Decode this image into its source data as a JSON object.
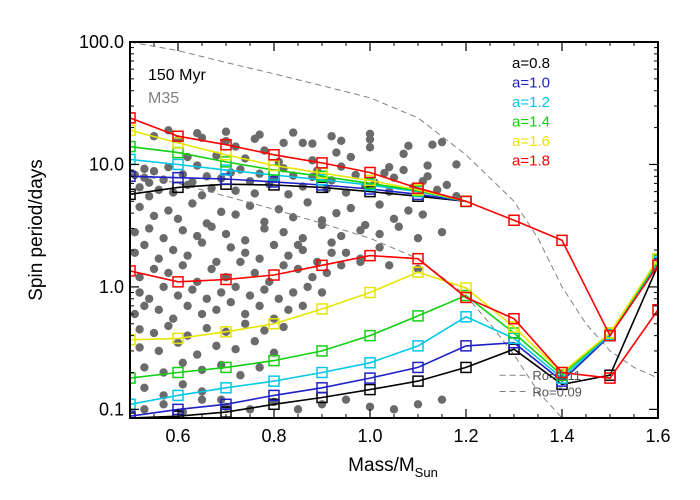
{
  "chart_data": {
    "type": "line",
    "xlabel_main": "Mass/M",
    "xlabel_sub": "Sun",
    "ylabel": "Spin period/days",
    "xlim": [
      0.5,
      1.6
    ],
    "ylim": [
      0.085,
      100
    ],
    "yscale": "log",
    "x_ticks": [
      0.6,
      0.8,
      1.0,
      1.2,
      1.4,
      1.6
    ],
    "x_tick_labels": [
      "0.6",
      "0.8",
      "1.0",
      "1.2",
      "1.4",
      "1.6"
    ],
    "y_ticks": [
      0.1,
      1,
      10,
      100
    ],
    "y_tick_labels": [
      "0.1",
      "1.0",
      "10.0",
      "100.0"
    ],
    "annotations": {
      "age": "150 Myr",
      "cluster": "M35",
      "ro_upper": "Ro=1.11",
      "ro_lower": "Ro=0.09"
    },
    "colors": {
      "scatter": "#6b6b6b",
      "cluster_label": "#808080",
      "ro_line": "#808080",
      "ro_text": "#555555"
    },
    "series": [
      {
        "name": "a=0.8",
        "color": "#000000",
        "upper": {
          "x": [
            0.5,
            0.6,
            0.7,
            0.8,
            0.9,
            1.0,
            1.1,
            1.2
          ],
          "y": [
            5.7,
            6.5,
            6.9,
            6.8,
            6.5,
            6.0,
            5.5,
            5.0
          ]
        },
        "lower": {
          "x": [
            0.5,
            0.6,
            0.7,
            0.8,
            0.9,
            1.0,
            1.1,
            1.2,
            1.3,
            1.4,
            1.5,
            1.6
          ],
          "y": [
            0.085,
            0.088,
            0.095,
            0.11,
            0.125,
            0.145,
            0.17,
            0.22,
            0.31,
            0.16,
            0.19,
            1.5
          ]
        }
      },
      {
        "name": "a=1.0",
        "color": "#2020c8",
        "upper": {
          "x": [
            0.5,
            0.6,
            0.7,
            0.8,
            0.9,
            1.0,
            1.1,
            1.2
          ],
          "y": [
            8.0,
            7.8,
            7.6,
            7.2,
            6.8,
            6.3,
            5.7,
            5.0
          ]
        },
        "lower": {
          "x": [
            0.5,
            0.6,
            0.7,
            0.8,
            0.9,
            1.0,
            1.1,
            1.2,
            1.3,
            1.4,
            1.5,
            1.6
          ],
          "y": [
            0.088,
            0.1,
            0.11,
            0.13,
            0.15,
            0.18,
            0.22,
            0.33,
            0.35,
            0.17,
            0.4,
            1.55
          ]
        }
      },
      {
        "name": "a=1.2",
        "color": "#00c8e6",
        "upper": {
          "x": [
            0.5,
            0.6,
            0.7,
            0.8,
            0.9,
            1.0,
            1.1,
            1.2
          ],
          "y": [
            11.0,
            10.0,
            9.0,
            8.2,
            7.5,
            6.8,
            6.0,
            5.0
          ]
        },
        "lower": {
          "x": [
            0.5,
            0.6,
            0.7,
            0.8,
            0.9,
            1.0,
            1.1,
            1.2,
            1.3,
            1.4,
            1.5,
            1.6
          ],
          "y": [
            0.11,
            0.13,
            0.15,
            0.17,
            0.2,
            0.24,
            0.33,
            0.57,
            0.38,
            0.18,
            0.41,
            1.6
          ]
        }
      },
      {
        "name": "a=1.4",
        "color": "#10d010",
        "upper": {
          "x": [
            0.5,
            0.6,
            0.7,
            0.8,
            0.9,
            1.0,
            1.1,
            1.2
          ],
          "y": [
            14.0,
            12.5,
            10.5,
            9.0,
            8.0,
            7.0,
            6.1,
            5.0
          ]
        },
        "lower": {
          "x": [
            0.5,
            0.6,
            0.7,
            0.8,
            0.9,
            1.0,
            1.1,
            1.2,
            1.3,
            1.4,
            1.5,
            1.6
          ],
          "y": [
            0.18,
            0.2,
            0.22,
            0.25,
            0.3,
            0.4,
            0.58,
            0.85,
            0.42,
            0.19,
            0.42,
            1.65
          ]
        }
      },
      {
        "name": "a=1.6",
        "color": "#e6e600",
        "upper": {
          "x": [
            0.5,
            0.6,
            0.7,
            0.8,
            0.9,
            1.0,
            1.1,
            1.2
          ],
          "y": [
            19.0,
            15.0,
            12.0,
            9.8,
            8.5,
            7.4,
            6.2,
            5.0
          ]
        },
        "lower": {
          "x": [
            0.5,
            0.6,
            0.7,
            0.8,
            0.9,
            1.0,
            1.1,
            1.2,
            1.3,
            1.4,
            1.5,
            1.6
          ],
          "y": [
            0.37,
            0.38,
            0.43,
            0.5,
            0.66,
            0.9,
            1.32,
            0.98,
            0.47,
            0.2,
            0.42,
            1.7
          ]
        }
      },
      {
        "name": "a=1.8",
        "color": "#ff0000",
        "upper": {
          "x": [
            0.5,
            0.6,
            0.7,
            0.8,
            0.9,
            1.0,
            1.1,
            1.2,
            1.3,
            1.4,
            1.5,
            1.6
          ],
          "y": [
            24.0,
            17.0,
            14.5,
            12.0,
            10.3,
            8.6,
            6.4,
            5.0,
            3.5,
            2.4,
            0.4,
            1.5
          ]
        },
        "lower": {
          "x": [
            0.5,
            0.6,
            0.7,
            0.8,
            0.9,
            1.0,
            1.1,
            1.2,
            1.3,
            1.4,
            1.5,
            1.6
          ],
          "y": [
            1.35,
            1.1,
            1.15,
            1.25,
            1.5,
            1.8,
            1.7,
            0.82,
            0.55,
            0.2,
            0.18,
            0.65
          ]
        }
      }
    ],
    "ro_curves": [
      {
        "label": "Ro=1.11",
        "x": [
          0.5,
          0.6,
          0.7,
          0.8,
          0.9,
          1.0,
          1.1,
          1.2,
          1.3,
          1.35,
          1.4,
          1.45,
          1.5,
          1.55,
          1.6
        ],
        "y": [
          100,
          85,
          68,
          55,
          44,
          35,
          24,
          12,
          5,
          2.5,
          1.0,
          0.5,
          0.3,
          0.22,
          0.18
        ]
      },
      {
        "label": "Ro=0.09",
        "x": [
          0.5,
          0.6,
          0.7,
          0.8,
          0.9,
          1.0,
          1.1,
          1.2,
          1.25,
          1.3,
          1.35,
          1.4
        ],
        "y": [
          8.5,
          7.0,
          5.5,
          4.3,
          3.3,
          2.5,
          1.7,
          0.85,
          0.5,
          0.28,
          0.14,
          0.085
        ]
      }
    ],
    "ro_legend": [
      {
        "label": "Ro=1.11",
        "x": [
          1.27,
          1.33
        ],
        "y": [
          0.19,
          0.19
        ]
      },
      {
        "label": "Ro=0.09",
        "x": [
          1.27,
          1.33
        ],
        "y": [
          0.14,
          0.14
        ]
      }
    ],
    "scatter_points": {
      "x": [
        0.51,
        0.52,
        0.53,
        0.53,
        0.54,
        0.54,
        0.55,
        0.56,
        0.57,
        0.58,
        0.59,
        0.61,
        0.62,
        0.63,
        0.64,
        0.65,
        0.66,
        0.67,
        0.69,
        0.71,
        0.72,
        0.73,
        0.75,
        0.76,
        0.77,
        0.79,
        0.8,
        0.82,
        0.83,
        0.84,
        0.86,
        0.88,
        0.89,
        0.91,
        0.92,
        0.94,
        0.95,
        0.97,
        0.99,
        1.01,
        1.03,
        1.04,
        1.05,
        1.07,
        1.09,
        1.11,
        1.12,
        1.14,
        1.16,
        1.18,
        0.52,
        0.55,
        0.58,
        0.6,
        0.63,
        0.66,
        0.69,
        0.72,
        0.75,
        0.78,
        0.81,
        0.84,
        0.87,
        0.9,
        0.93,
        0.96,
        0.99,
        1.02,
        1.05,
        1.08,
        1.11,
        0.51,
        0.54,
        0.57,
        0.61,
        0.64,
        0.67,
        0.7,
        0.74,
        0.78,
        0.82,
        0.86,
        0.9,
        0.94,
        0.98,
        1.02,
        1.06,
        1.1,
        1.15,
        0.51,
        0.53,
        0.56,
        0.59,
        0.62,
        0.65,
        0.68,
        0.71,
        0.74,
        0.77,
        0.8,
        0.83,
        0.86,
        0.89,
        0.92,
        0.95,
        0.98,
        1.02,
        0.52,
        0.55,
        0.58,
        0.61,
        0.64,
        0.67,
        0.7,
        0.73,
        0.76,
        0.79,
        0.82,
        0.85,
        0.88,
        0.91,
        0.94,
        0.52,
        0.54,
        0.57,
        0.6,
        0.63,
        0.66,
        0.69,
        0.72,
        0.75,
        0.78,
        0.81,
        0.84,
        0.87,
        0.9,
        0.51,
        0.53,
        0.56,
        0.59,
        0.62,
        0.65,
        0.68,
        0.71,
        0.74,
        0.77,
        0.8,
        0.83,
        0.86,
        0.52,
        0.55,
        0.58,
        0.62,
        0.66,
        0.7,
        0.74,
        0.78,
        0.82,
        0.52,
        0.56,
        0.6,
        0.64,
        0.68,
        0.72,
        0.76,
        0.8,
        0.53,
        0.57,
        0.61,
        0.65,
        0.69,
        0.73,
        0.77,
        0.53,
        0.57,
        0.61,
        0.65,
        0.69,
        0.53,
        0.57,
        0.61,
        0.65,
        0.7,
        0.75,
        0.8,
        0.85,
        0.9,
        0.95,
        1.0,
        1.05,
        1.1,
        1.15,
        0.72,
        0.78,
        0.86,
        0.93,
        1.0,
        1.07,
        1.13,
        0.62,
        0.68,
        0.74,
        0.81,
        0.88,
        0.96,
        1.04,
        1.12,
        1.18,
        0.55,
        0.6,
        0.65,
        0.7,
        0.76,
        0.82,
        0.88,
        0.94,
        1.0,
        1.08,
        1.15,
        0.58,
        0.64,
        0.7,
        0.77,
        0.84,
        0.92,
        1.0,
        0.85,
        0.92,
        0.98,
        1.04,
        1.1
      ],
      "y": [
        8.2,
        6.5,
        7.8,
        9.2,
        5.5,
        7.1,
        8.8,
        6.2,
        7.5,
        9.5,
        5.9,
        8.3,
        6.8,
        7.2,
        9.8,
        5.6,
        8.0,
        6.4,
        7.7,
        8.6,
        6.1,
        9.1,
        7.3,
        5.8,
        8.4,
        6.9,
        7.6,
        9.3,
        5.7,
        8.1,
        6.6,
        7.9,
        8.9,
        6.3,
        7.4,
        9.6,
        5.9,
        8.2,
        6.7,
        7.1,
        8.5,
        6.0,
        7.8,
        9.0,
        6.5,
        7.3,
        8.0,
        6.2,
        6.8,
        5.5,
        4.5,
        3.8,
        4.2,
        3.6,
        4.8,
        3.3,
        4.1,
        3.9,
        4.6,
        3.4,
        4.3,
        3.7,
        4.9,
        3.5,
        4.0,
        4.4,
        3.2,
        4.7,
        3.6,
        4.2,
        3.9,
        2.8,
        3.0,
        2.5,
        2.9,
        2.6,
        3.1,
        2.7,
        2.4,
        3.0,
        2.8,
        2.5,
        3.2,
        2.6,
        2.9,
        2.7,
        3.1,
        2.5,
        2.8,
        1.9,
        2.2,
        1.7,
        2.0,
        1.8,
        2.3,
        1.6,
        2.1,
        1.9,
        1.7,
        2.2,
        1.8,
        2.0,
        1.6,
        2.3,
        1.9,
        1.7,
        2.1,
        1.2,
        1.4,
        1.3,
        1.5,
        1.1,
        1.4,
        1.2,
        1.6,
        1.3,
        1.1,
        1.5,
        1.4,
        1.2,
        1.3,
        1.5,
        0.9,
        0.8,
        1.0,
        0.85,
        0.95,
        0.8,
        0.9,
        1.0,
        0.85,
        0.95,
        0.8,
        0.9,
        1.0,
        0.9,
        0.6,
        0.7,
        0.65,
        0.55,
        0.7,
        0.6,
        0.65,
        0.75,
        0.6,
        0.7,
        0.55,
        0.65,
        0.7,
        0.45,
        0.42,
        0.48,
        0.4,
        0.46,
        0.43,
        0.5,
        0.44,
        0.47,
        0.32,
        0.3,
        0.35,
        0.28,
        0.33,
        0.31,
        0.36,
        0.29,
        0.22,
        0.2,
        0.24,
        0.21,
        0.23,
        0.19,
        0.22,
        0.15,
        0.13,
        0.16,
        0.14,
        0.12,
        0.1,
        0.11,
        0.095,
        0.12,
        0.105,
        0.1,
        0.115,
        0.1,
        0.11,
        0.12,
        0.105,
        0.1,
        0.11,
        0.12,
        14,
        13,
        15,
        12.5,
        13.8,
        12.2,
        14.5,
        11.5,
        11.8,
        11.2,
        10.5,
        10.8,
        11.5,
        9.5,
        9.8,
        10.0,
        17,
        16,
        16.5,
        15.5,
        16.2,
        15.0,
        14.8,
        15.6,
        16.0,
        14.2,
        15.2,
        19,
        18,
        18.5,
        17.5,
        18.2,
        17.0,
        17.8,
        2.2,
        1.9,
        1.6,
        1.5,
        1.4
      ]
    }
  }
}
